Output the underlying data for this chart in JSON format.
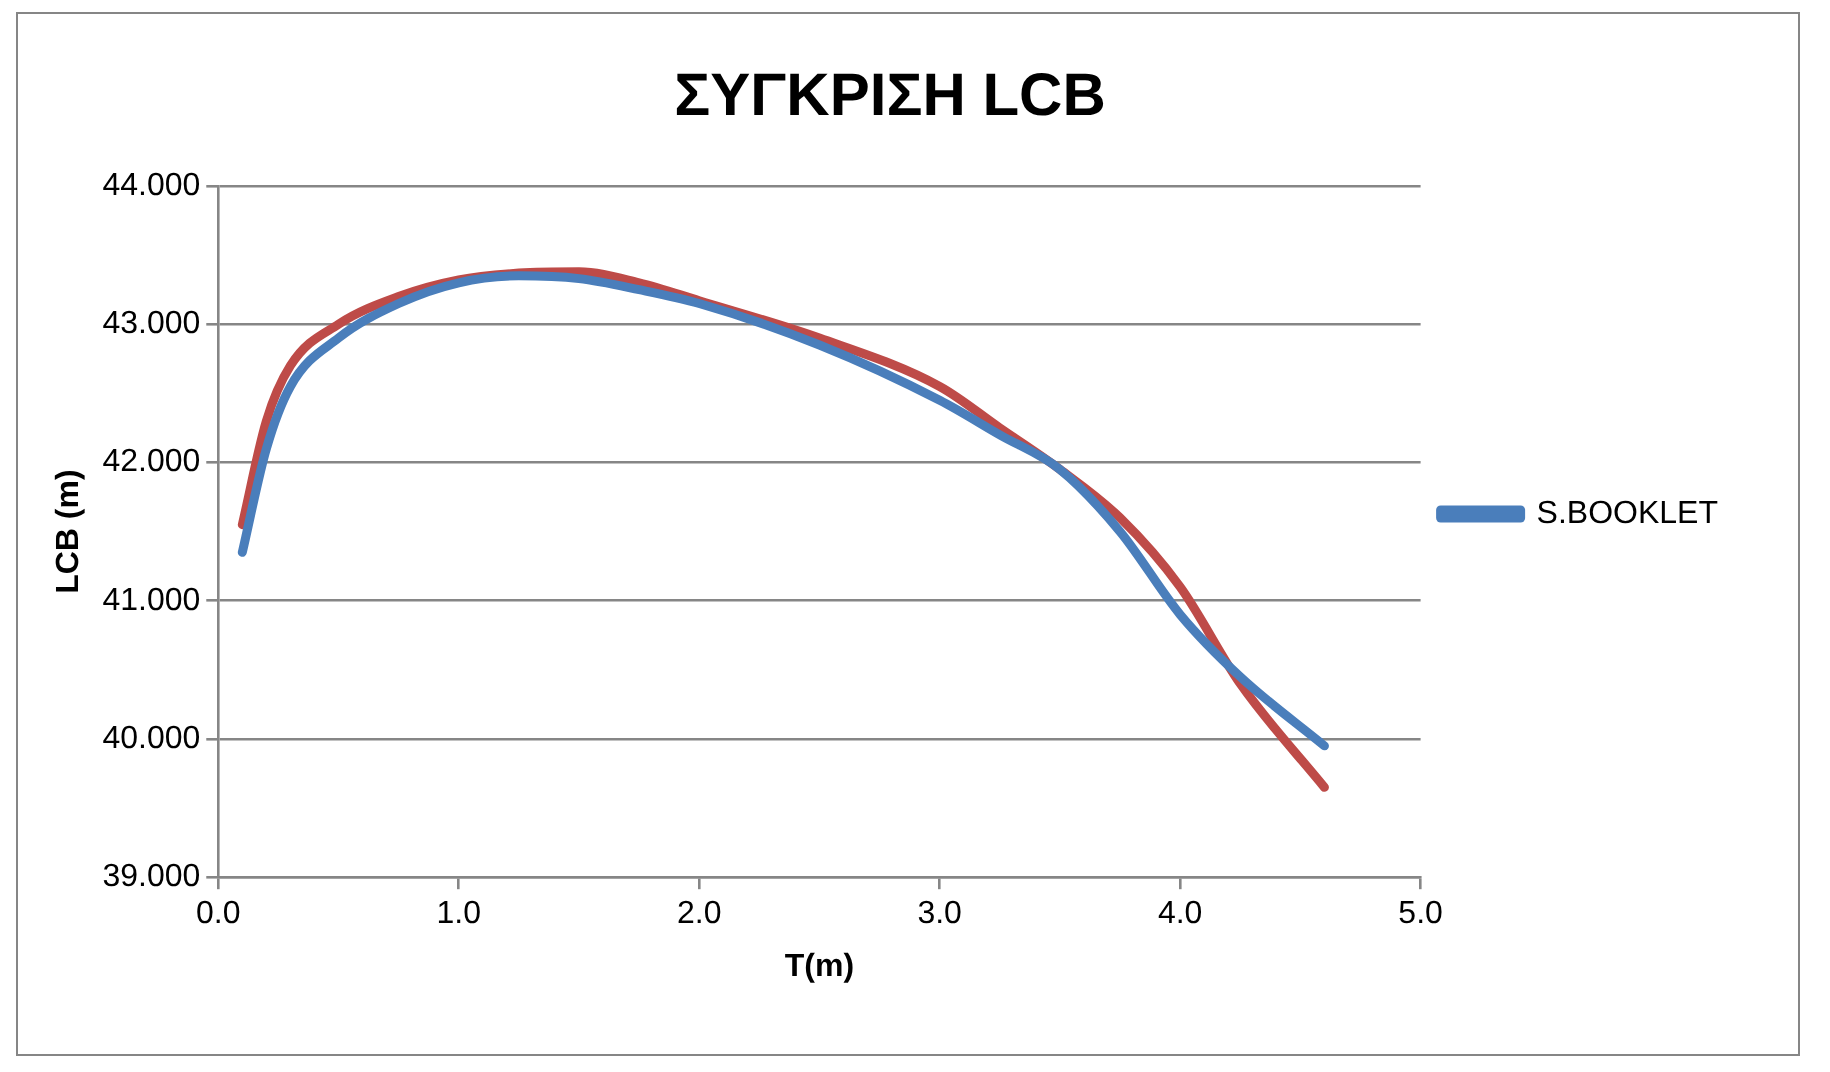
{
  "chart_data": {
    "type": "line",
    "title": "ΣΥΓΚΡΙΣΗ LCB",
    "xlabel": "T(m)",
    "ylabel": "LCB (m)",
    "x": [
      0.1,
      0.2,
      0.3,
      0.5,
      0.75,
      1.0,
      1.25,
      1.5,
      1.75,
      2.0,
      2.5,
      3.0,
      3.25,
      3.5,
      3.75,
      4.0,
      4.25,
      4.6
    ],
    "series": [
      {
        "name": "S.BOOKLET",
        "color": "#4a7ebb",
        "values": [
          41.35,
          42.1,
          42.55,
          42.9,
          43.15,
          43.3,
          43.35,
          43.33,
          43.25,
          43.15,
          42.85,
          42.45,
          42.2,
          41.95,
          41.5,
          40.9,
          40.45,
          39.95
        ]
      },
      {
        "color": "#be4b48",
        "values": [
          41.55,
          42.3,
          42.7,
          43.0,
          43.2,
          43.32,
          43.37,
          43.38,
          43.3,
          43.17,
          42.9,
          42.55,
          42.25,
          41.95,
          41.6,
          41.1,
          40.4,
          39.65
        ]
      }
    ],
    "xlim": [
      0,
      5
    ],
    "xticks": [
      {
        "value": 0,
        "label": "0.0"
      },
      {
        "value": 1,
        "label": "1.0"
      },
      {
        "value": 2,
        "label": "2.0"
      },
      {
        "value": 3,
        "label": "3.0"
      },
      {
        "value": 4,
        "label": "4.0"
      },
      {
        "value": 5,
        "label": "5.0"
      }
    ],
    "ylim": [
      39,
      44
    ],
    "yticks": [
      {
        "value": 39,
        "label": "39.000"
      },
      {
        "value": 40,
        "label": "40.000"
      },
      {
        "value": 41,
        "label": "41.000"
      },
      {
        "value": 42,
        "label": "42.000"
      },
      {
        "value": 43,
        "label": "43.000"
      },
      {
        "value": 44,
        "label": "44.000"
      }
    ],
    "grid": "y",
    "legend": "right",
    "marker": "none",
    "line_style": "solid"
  }
}
